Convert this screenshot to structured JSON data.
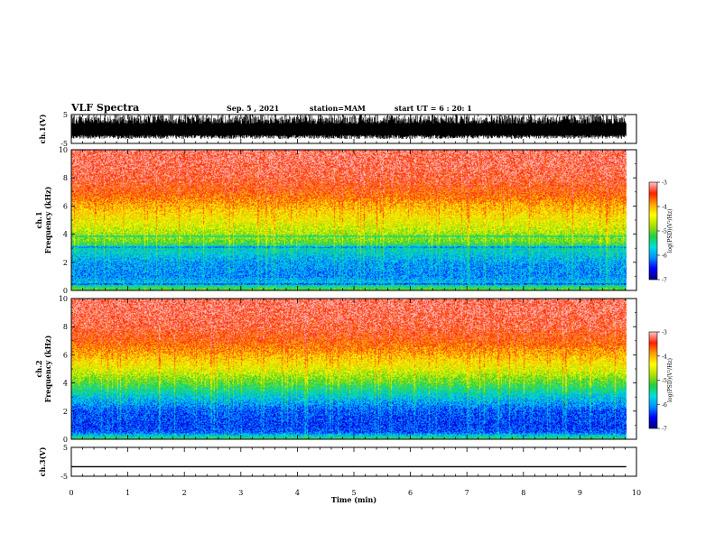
{
  "header": {
    "title": "VLF Spectra",
    "date": "Sep. 5 , 2021",
    "station": "station=MAM",
    "start": "start UT = 6 : 20: 1"
  },
  "colors": {
    "scale": [
      "#000080",
      "#0000ff",
      "#0090ff",
      "#00e0e0",
      "#20d040",
      "#b0e000",
      "#ffff00",
      "#ffa000",
      "#ff2000",
      "#ffc0c0"
    ],
    "trace": "#000000"
  },
  "chart_data": [
    {
      "type": "line",
      "ylabel": "ch.1(V)",
      "ylim": [
        -5,
        5
      ],
      "yticks": [
        "5",
        "-5"
      ],
      "description_note": "",
      "noise_envelope": [
        -3.5,
        5
      ],
      "xlim": [
        0,
        10
      ]
    },
    {
      "type": "heatmap",
      "ylabel": "ch.1\nFrequency (kHz)",
      "ylabel_line1": "ch.1",
      "ylabel_line2": "Frequency (kHz)",
      "ylim": [
        0,
        10
      ],
      "yticks": [
        "0",
        "2",
        "4",
        "6",
        "8",
        "10"
      ],
      "xlim": [
        0,
        10
      ],
      "data_end_min": 9.82,
      "colorbar": {
        "label": "log(PSD)(V²/Hz)",
        "range": [
          -7,
          -3
        ],
        "ticks": [
          "-3",
          "-4",
          "-5",
          "-6",
          "-7"
        ]
      },
      "level_profile": {
        "freq_khz": [
          0,
          0.5,
          1,
          2,
          3,
          3.5,
          4,
          5,
          6,
          7,
          8,
          9,
          10
        ],
        "log_psd": [
          -5.0,
          -5.8,
          -6.1,
          -6.0,
          -5.6,
          -5.0,
          -4.8,
          -4.4,
          -4.0,
          -3.6,
          -3.35,
          -3.25,
          -3.2
        ]
      }
    },
    {
      "type": "heatmap",
      "ylabel": "ch.2\nFrequency (kHz)",
      "ylabel_line1": "ch.2",
      "ylabel_line2": "Frequency (kHz)",
      "ylim": [
        0,
        10
      ],
      "yticks": [
        "0",
        "2",
        "4",
        "6",
        "8",
        "10"
      ],
      "xlim": [
        0,
        10
      ],
      "data_end_min": 9.82,
      "colorbar": {
        "label": "log(PSD)(V²/Hz)",
        "range": [
          -7,
          -3
        ],
        "ticks": [
          "-3",
          "-4",
          "-5",
          "-6",
          "-7"
        ]
      },
      "level_profile": {
        "freq_khz": [
          0,
          0.5,
          1,
          2,
          3,
          4,
          5,
          6,
          7,
          8,
          9,
          10
        ],
        "log_psd": [
          -5.2,
          -6.3,
          -6.4,
          -6.3,
          -5.8,
          -5.1,
          -4.5,
          -4.0,
          -3.6,
          -3.35,
          -3.25,
          -3.2
        ]
      }
    },
    {
      "type": "line",
      "ylabel": "ch.3(V)",
      "ylim": [
        -5,
        5
      ],
      "yticks": [
        "5",
        "-5"
      ],
      "constant_value": -1.7,
      "xlim": [
        0,
        10
      ],
      "xlabel": "Time (min)",
      "xticks": [
        "0",
        "1",
        "2",
        "3",
        "4",
        "5",
        "6",
        "7",
        "8",
        "9",
        "10"
      ]
    }
  ]
}
